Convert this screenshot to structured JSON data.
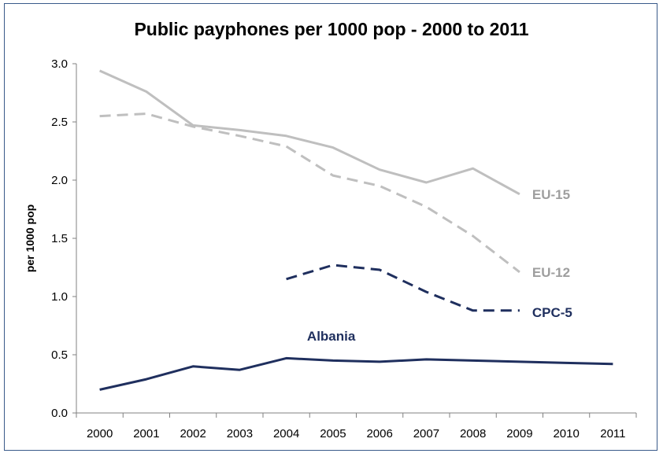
{
  "chart_data": {
    "type": "line",
    "title": "Public payphones per 1000 pop - 2000 to 2011",
    "xlabel": "",
    "ylabel": "per 1000 pop",
    "ylim": [
      0,
      3.0
    ],
    "y_ticks": [
      "0.0",
      "0.5",
      "1.0",
      "1.5",
      "2.0",
      "2.5",
      "3.0"
    ],
    "categories": [
      "2000",
      "2001",
      "2002",
      "2003",
      "2004",
      "2005",
      "2006",
      "2007",
      "2008",
      "2009",
      "2010",
      "2011"
    ],
    "grid": false,
    "legend": "inline labels at line ends",
    "series": [
      {
        "name": "EU-15",
        "color": "#bfbfbf",
        "dash": "solid",
        "values": [
          2.94,
          2.76,
          2.47,
          2.43,
          2.38,
          2.28,
          2.09,
          1.98,
          2.1,
          1.88,
          null,
          null
        ]
      },
      {
        "name": "EU-12",
        "color": "#bfbfbf",
        "dash": "dashed",
        "values": [
          2.55,
          2.57,
          2.46,
          2.38,
          2.29,
          2.04,
          1.95,
          1.77,
          1.52,
          1.21,
          null,
          null
        ]
      },
      {
        "name": "CPC-5",
        "color": "#1f2f5e",
        "dash": "dashed",
        "values": [
          null,
          null,
          null,
          null,
          1.15,
          1.27,
          1.23,
          1.04,
          0.88,
          0.88,
          null,
          null
        ]
      },
      {
        "name": "Albania",
        "color": "#1f2f5e",
        "dash": "solid",
        "values": [
          0.2,
          0.29,
          0.4,
          0.37,
          0.47,
          0.45,
          0.44,
          0.46,
          0.45,
          0.44,
          0.43,
          0.42
        ]
      }
    ]
  }
}
